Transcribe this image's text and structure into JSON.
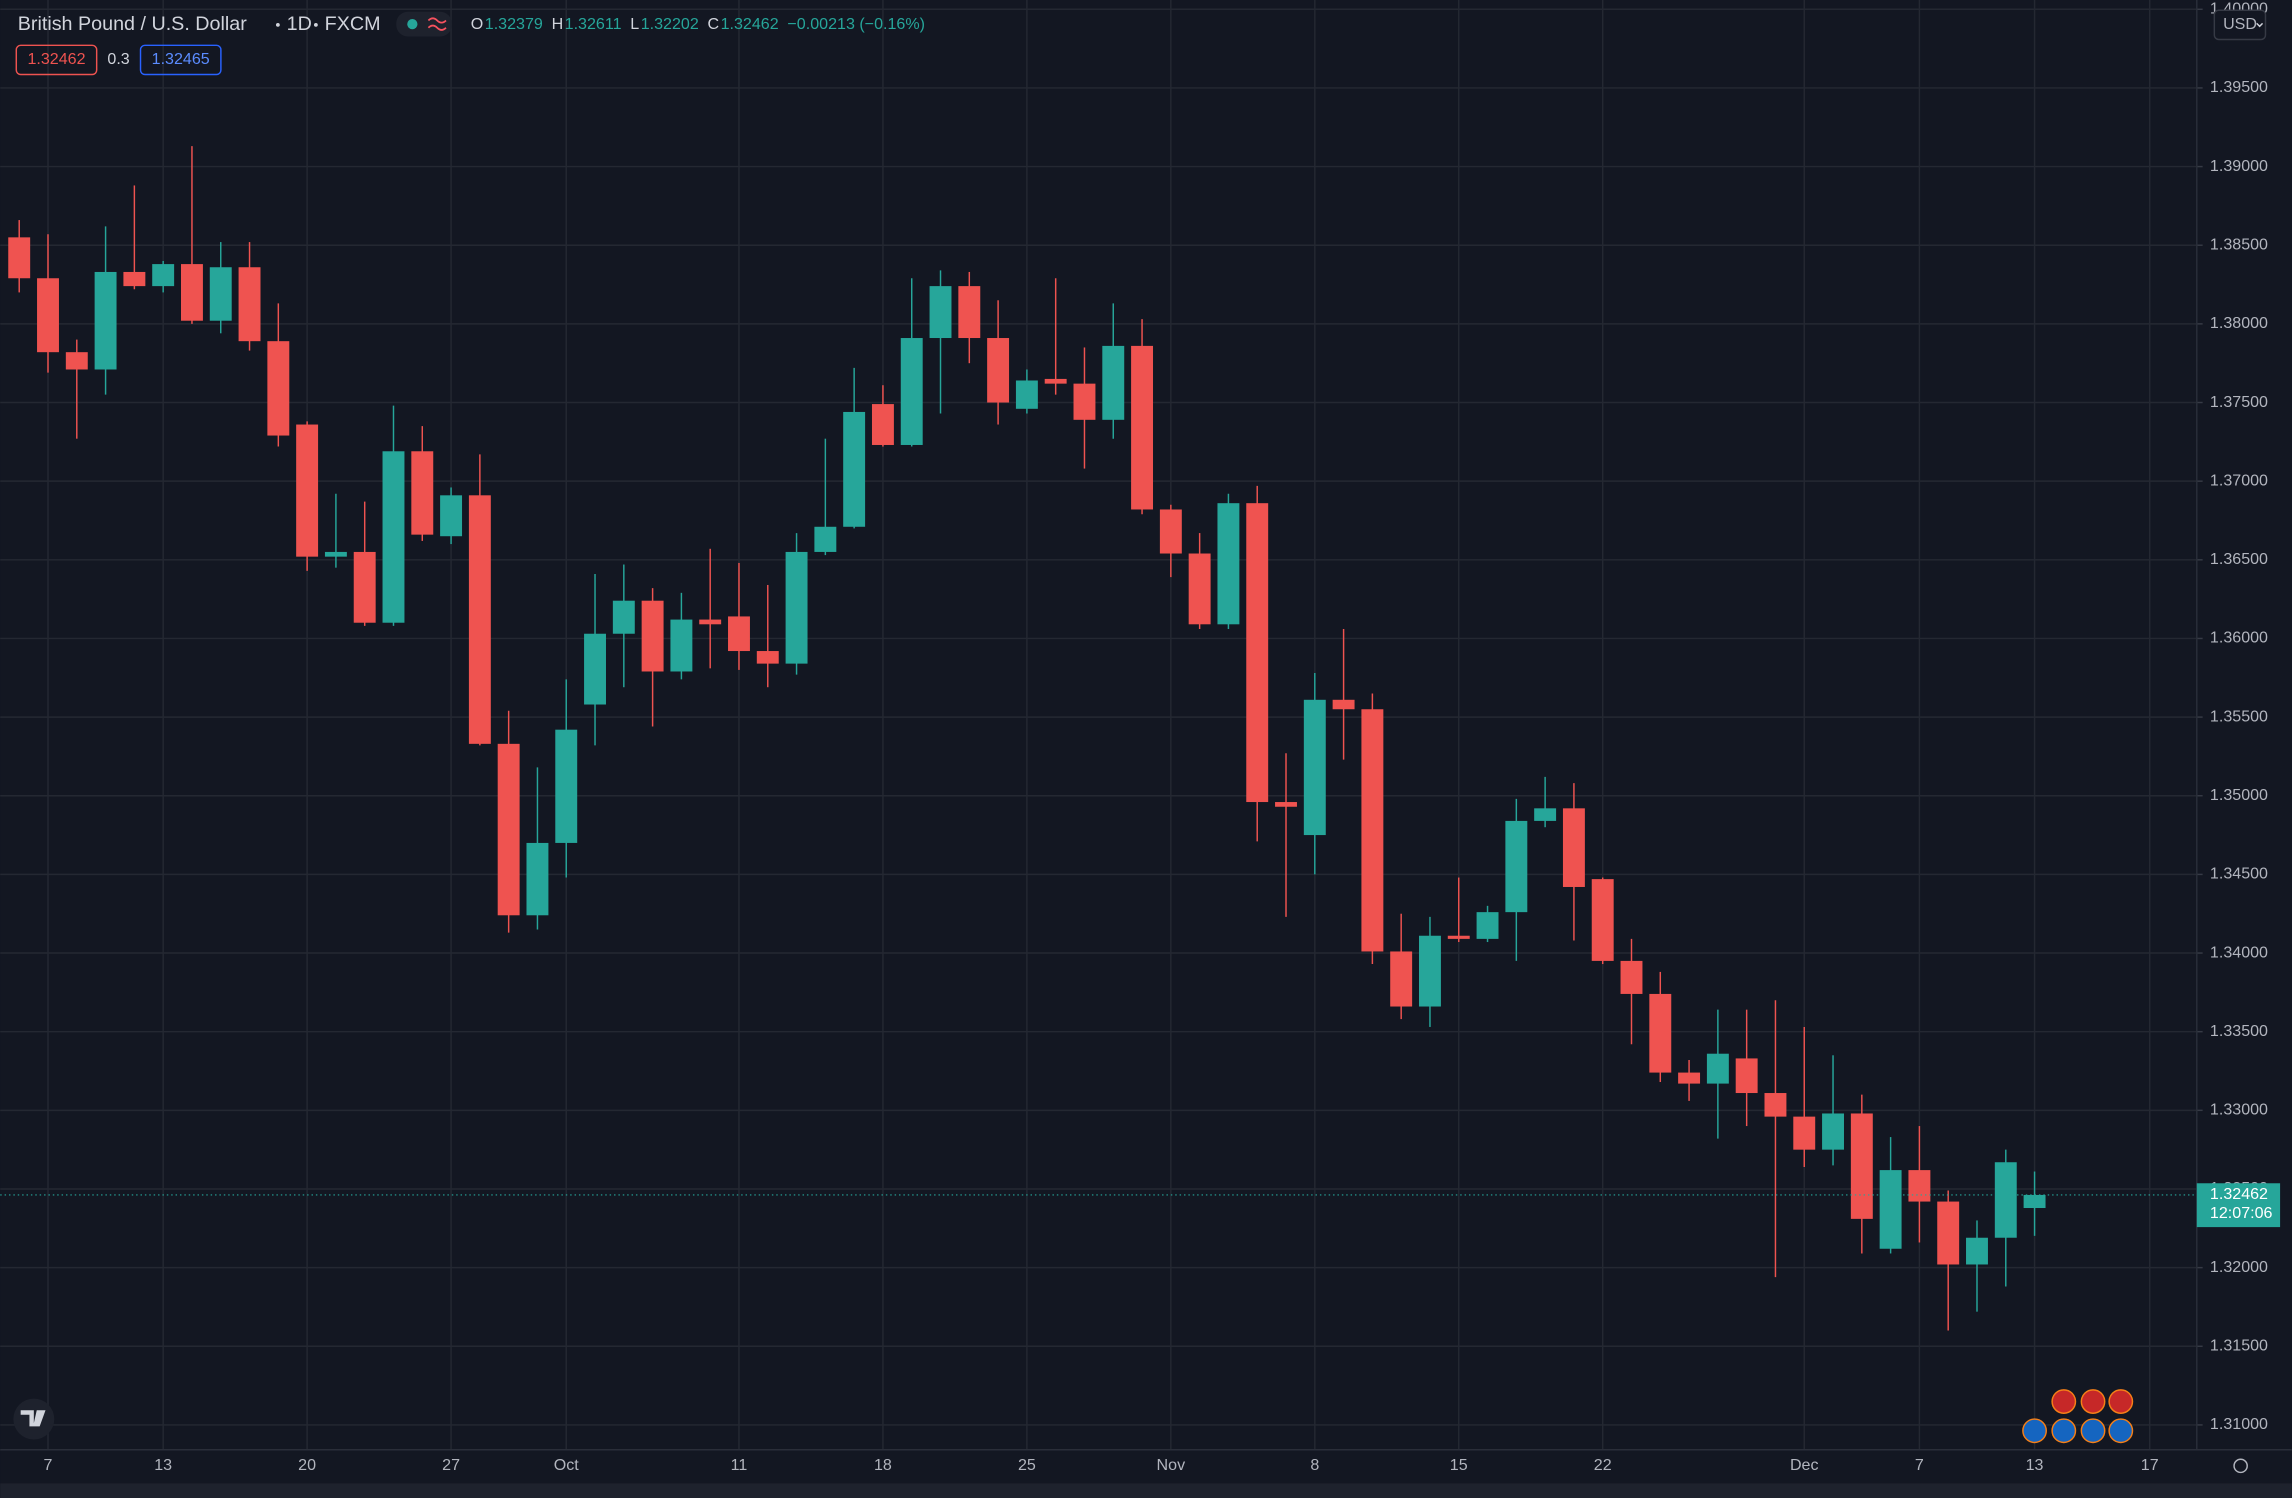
{
  "header": {
    "symbol": "British Pound / U.S. Dollar",
    "interval": "1D",
    "exchange": "FXCM",
    "ohlc": [
      {
        "label": "O",
        "value": "1.32379"
      },
      {
        "label": "H",
        "value": "1.32611"
      },
      {
        "label": "L",
        "value": "1.32202"
      },
      {
        "label": "C",
        "value": "1.32462"
      }
    ],
    "change": "−0.00213 (−0.16%)",
    "bid": "1.32462",
    "spread": "0.3",
    "ask": "1.32465",
    "currency": "USD"
  },
  "chart_data": {
    "type": "candlestick",
    "categories": [
      null,
      "7",
      null,
      null,
      null,
      "13",
      null,
      null,
      null,
      null,
      "20",
      null,
      null,
      null,
      null,
      "27",
      null,
      null,
      null,
      "Oct",
      null,
      null,
      null,
      null,
      null,
      "11",
      null,
      null,
      null,
      null,
      "18",
      null,
      null,
      null,
      null,
      "25",
      null,
      null,
      null,
      null,
      "Nov",
      null,
      null,
      null,
      null,
      "8",
      null,
      null,
      null,
      null,
      "15",
      null,
      null,
      null,
      null,
      "22",
      null,
      null,
      null,
      null,
      null,
      null,
      "Dec",
      null,
      null,
      null,
      "7",
      null,
      null,
      null,
      "13",
      null,
      null,
      null,
      "17",
      null
    ],
    "open": [
      1.3855,
      1.3829,
      1.3782,
      1.3771,
      1.3833,
      1.3824,
      1.3838,
      1.3802,
      1.3836,
      1.3789,
      1.3736,
      1.3652,
      1.3655,
      1.361,
      1.3719,
      1.3665,
      1.3691,
      1.3533,
      1.3424,
      1.347,
      1.3558,
      1.3603,
      1.3624,
      1.3579,
      1.3612,
      1.3614,
      1.3592,
      1.3584,
      1.3655,
      1.3671,
      1.3749,
      1.3723,
      1.3791,
      1.3824,
      1.3791,
      1.3746,
      1.3765,
      1.3762,
      1.3739,
      1.3786,
      1.3682,
      1.3654,
      1.3609,
      1.3686,
      1.3496,
      1.3475,
      1.3561,
      1.3555,
      1.3401,
      1.3366,
      1.3411,
      1.3409,
      1.3426,
      1.3484,
      1.3492,
      1.3447,
      1.3395,
      1.3374,
      1.3324,
      1.3317,
      1.3333,
      1.3311,
      1.3296,
      1.3275,
      1.3298,
      1.3212,
      1.3262,
      1.3242,
      1.3202,
      1.3219,
      1.32379,
      null,
      null,
      null,
      null,
      null
    ],
    "high": [
      1.3866,
      1.3857,
      1.379,
      1.3862,
      1.3888,
      1.384,
      1.3913,
      1.3852,
      1.3852,
      1.3813,
      1.3738,
      1.3692,
      1.3687,
      1.3748,
      1.3735,
      1.3696,
      1.3717,
      1.3554,
      1.3518,
      1.3574,
      1.3641,
      1.3647,
      1.3632,
      1.3629,
      1.3657,
      1.3648,
      1.3634,
      1.3667,
      1.3727,
      1.3772,
      1.3761,
      1.3829,
      1.3834,
      1.3833,
      1.3815,
      1.3771,
      1.3829,
      1.3785,
      1.3813,
      1.3803,
      1.3685,
      1.3667,
      1.3692,
      1.3697,
      1.3527,
      1.3578,
      1.3606,
      1.3565,
      1.3425,
      1.3423,
      1.3448,
      1.343,
      1.3498,
      1.3512,
      1.3508,
      1.3448,
      1.3409,
      1.3388,
      1.3332,
      1.3364,
      1.3364,
      1.337,
      1.3353,
      1.3335,
      1.331,
      1.3283,
      1.329,
      1.3249,
      1.323,
      1.3275,
      1.32611,
      null,
      null,
      null,
      null,
      null
    ],
    "low": [
      1.382,
      1.3769,
      1.3727,
      1.3755,
      1.3822,
      1.382,
      1.38,
      1.3794,
      1.3783,
      1.3722,
      1.3643,
      1.3645,
      1.3608,
      1.3608,
      1.3662,
      1.366,
      1.3532,
      1.3413,
      1.3415,
      1.3448,
      1.3532,
      1.3569,
      1.3544,
      1.3574,
      1.3581,
      1.358,
      1.3569,
      1.3577,
      1.3653,
      1.367,
      1.3722,
      1.3722,
      1.3743,
      1.3775,
      1.3736,
      1.3743,
      1.3755,
      1.3708,
      1.3727,
      1.3679,
      1.3639,
      1.3606,
      1.3606,
      1.3471,
      1.3423,
      1.345,
      1.3523,
      1.3393,
      1.3358,
      1.3353,
      1.3407,
      1.3407,
      1.3395,
      1.348,
      1.3408,
      1.3393,
      1.3342,
      1.3318,
      1.3306,
      1.3282,
      1.329,
      1.3194,
      1.3264,
      1.3265,
      1.3209,
      1.3209,
      1.3216,
      1.316,
      1.3172,
      1.3188,
      1.32202,
      null,
      null,
      null,
      null,
      null
    ],
    "close": [
      1.3829,
      1.3782,
      1.3771,
      1.3833,
      1.3824,
      1.3838,
      1.3802,
      1.3836,
      1.3789,
      1.3729,
      1.3652,
      1.3655,
      1.361,
      1.3719,
      1.3666,
      1.3691,
      1.3533,
      1.3424,
      1.347,
      1.3542,
      1.3603,
      1.3624,
      1.3579,
      1.3612,
      1.3609,
      1.3592,
      1.3584,
      1.3655,
      1.3671,
      1.3744,
      1.3723,
      1.3791,
      1.3824,
      1.3791,
      1.375,
      1.3764,
      1.3762,
      1.3739,
      1.3786,
      1.3682,
      1.3654,
      1.3609,
      1.3686,
      1.3496,
      1.3493,
      1.3561,
      1.3555,
      1.3401,
      1.3366,
      1.3411,
      1.3409,
      1.3426,
      1.3484,
      1.3492,
      1.3442,
      1.3395,
      1.3374,
      1.3324,
      1.3317,
      1.3336,
      1.3311,
      1.3296,
      1.3275,
      1.3298,
      1.3231,
      1.3262,
      1.3242,
      1.3202,
      1.3219,
      1.3267,
      1.32462,
      null,
      null,
      null,
      null,
      null
    ],
    "up_color": "#26a69a",
    "down_color": "#ef5350",
    "ylim": [
      1.30842,
      1.40059
    ],
    "yticks": [
      {
        "value": 1.31,
        "label": "1.31000"
      },
      {
        "value": 1.315,
        "label": "1.31500"
      },
      {
        "value": 1.32,
        "label": "1.32000"
      },
      {
        "value": 1.325,
        "label": "1.32500"
      },
      {
        "value": 1.33,
        "label": "1.33000"
      },
      {
        "value": 1.335,
        "label": "1.33500"
      },
      {
        "value": 1.34,
        "label": "1.34000"
      },
      {
        "value": 1.345,
        "label": "1.34500"
      },
      {
        "value": 1.35,
        "label": "1.35000"
      },
      {
        "value": 1.355,
        "label": "1.35500"
      },
      {
        "value": 1.36,
        "label": "1.36000"
      },
      {
        "value": 1.365,
        "label": "1.36500"
      },
      {
        "value": 1.37,
        "label": "1.37000"
      },
      {
        "value": 1.375,
        "label": "1.37500"
      },
      {
        "value": 1.38,
        "label": "1.38000"
      },
      {
        "value": 1.385,
        "label": "1.38500"
      },
      {
        "value": 1.39,
        "label": "1.39000"
      },
      {
        "value": 1.395,
        "label": "1.39500"
      },
      {
        "value": 1.4,
        "label": "1.40000"
      }
    ],
    "grid": true,
    "last_price": {
      "value": 1.32462,
      "label": "1.32462"
    },
    "countdown": "12:07:06"
  }
}
